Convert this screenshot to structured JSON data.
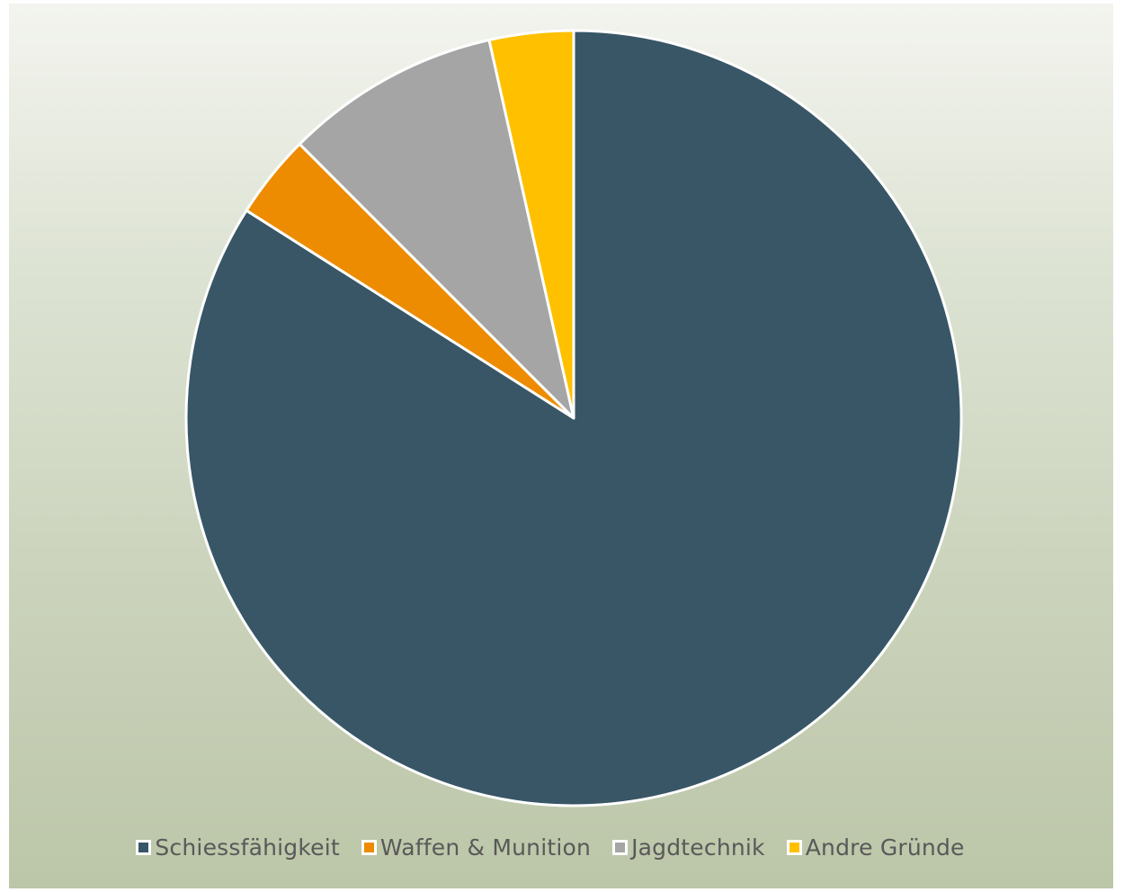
{
  "chart_data": {
    "type": "pie",
    "title": "",
    "start_angle_deg": 0,
    "direction": "clockwise",
    "slices": [
      {
        "label": "Schiessfähigkeit",
        "value": 84,
        "color": "#385666"
      },
      {
        "label": "Waffen & Munition",
        "value": 3.5,
        "color": "#ed8c00"
      },
      {
        "label": "Jagdtechnik",
        "value": 9,
        "color": "#a5a5a5"
      },
      {
        "label": "Andre Gründe",
        "value": 3.5,
        "color": "#ffc000"
      }
    ],
    "legend_position": "bottom",
    "slice_border_color": "#ffffff"
  }
}
